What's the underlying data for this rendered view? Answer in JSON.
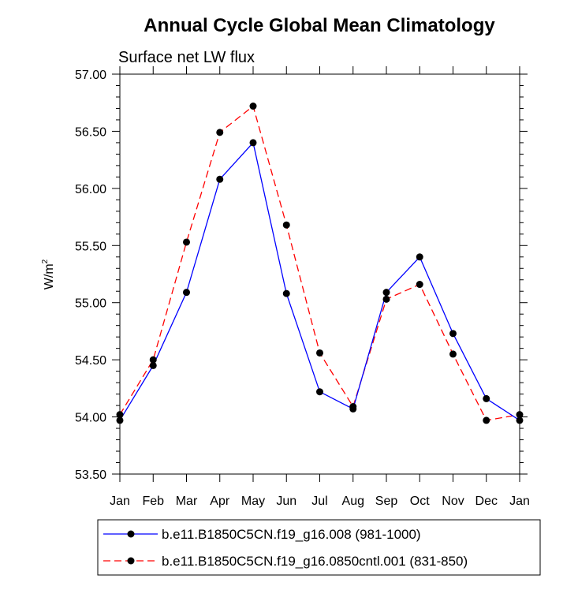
{
  "chart_data": {
    "type": "line",
    "title": "Annual Cycle Global Mean Climatology",
    "subtitle": "Surface net LW flux",
    "ylabel": "W/m",
    "ylabel_superscript": "2",
    "xlabel": "",
    "categories": [
      "Jan",
      "Feb",
      "Mar",
      "Apr",
      "May",
      "Jun",
      "Jul",
      "Aug",
      "Sep",
      "Oct",
      "Nov",
      "Dec",
      "Jan"
    ],
    "ylim": [
      53.5,
      57.0
    ],
    "yticks": [
      "53.50",
      "54.00",
      "54.50",
      "55.00",
      "55.50",
      "56.00",
      "56.50",
      "57.00"
    ],
    "grid": false,
    "legend_position": "bottom",
    "series": [
      {
        "name": "b.e11.B1850C5CN.f19_g16.008 (981-1000)",
        "color": "#0000ff",
        "line_style": "solid",
        "marker": "filled-circle",
        "values": [
          53.97,
          54.45,
          55.09,
          56.08,
          56.4,
          55.08,
          54.22,
          54.07,
          55.09,
          55.4,
          54.73,
          54.16,
          53.97
        ]
      },
      {
        "name": "b.e11.B1850C5CN.f19_g16.0850cntl.001 (831-850)",
        "color": "#ff0000",
        "line_style": "dashed",
        "marker": "filled-circle",
        "values": [
          54.02,
          54.5,
          55.53,
          56.49,
          56.72,
          55.68,
          54.56,
          54.09,
          55.03,
          55.16,
          54.55,
          53.97,
          54.02
        ]
      }
    ]
  }
}
